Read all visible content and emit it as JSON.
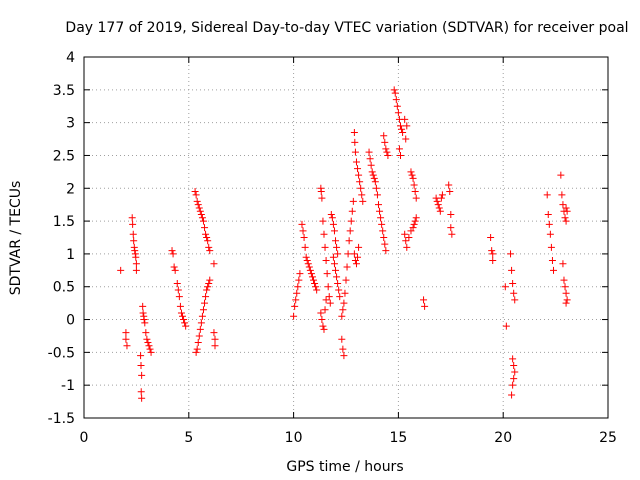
{
  "chart_data": {
    "type": "scatter",
    "title": "Day 177 of 2019, Sidereal Day-to-day VTEC variation (SDTVAR) for receiver poal",
    "xlabel": "GPS time / hours",
    "ylabel": "SDTVAR / TECUs",
    "xlim": [
      0,
      25
    ],
    "ylim": [
      -1.5,
      4
    ],
    "xticks": [
      0,
      5,
      10,
      15,
      20,
      25
    ],
    "yticks": [
      -1.5,
      -1,
      -0.5,
      0,
      0.5,
      1,
      1.5,
      2,
      2.5,
      3,
      3.5,
      4
    ],
    "xtick_labels": [
      "0",
      "5",
      "10",
      "15",
      "20",
      "25"
    ],
    "ytick_labels": [
      "-1.5",
      "-1",
      "-0.5",
      "0",
      "0.5",
      "1",
      "1.5",
      "2",
      "2.5",
      "3",
      "3.5",
      "4"
    ],
    "grid": true,
    "marker": "+",
    "marker_color": "#ff0000",
    "series": [
      {
        "name": "SDTVAR",
        "points": [
          [
            1.75,
            0.75
          ],
          [
            2.0,
            -0.2
          ],
          [
            2.0,
            -0.3
          ],
          [
            2.05,
            -0.4
          ],
          [
            2.3,
            1.55
          ],
          [
            2.32,
            1.45
          ],
          [
            2.35,
            1.3
          ],
          [
            2.37,
            1.2
          ],
          [
            2.4,
            1.1
          ],
          [
            2.42,
            1.05
          ],
          [
            2.45,
            1.0
          ],
          [
            2.47,
            0.95
          ],
          [
            2.5,
            0.85
          ],
          [
            2.5,
            0.75
          ],
          [
            2.7,
            -0.55
          ],
          [
            2.72,
            -0.7
          ],
          [
            2.75,
            -0.85
          ],
          [
            2.73,
            -1.1
          ],
          [
            2.75,
            -1.2
          ],
          [
            2.8,
            0.2
          ],
          [
            2.82,
            0.1
          ],
          [
            2.85,
            0.05
          ],
          [
            2.87,
            0.0
          ],
          [
            2.9,
            -0.05
          ],
          [
            2.95,
            -0.2
          ],
          [
            3.0,
            -0.3
          ],
          [
            3.05,
            -0.35
          ],
          [
            3.1,
            -0.4
          ],
          [
            3.15,
            -0.45
          ],
          [
            3.2,
            -0.5
          ],
          [
            4.2,
            1.05
          ],
          [
            4.25,
            1.0
          ],
          [
            4.3,
            0.8
          ],
          [
            4.35,
            0.75
          ],
          [
            4.45,
            0.55
          ],
          [
            4.5,
            0.45
          ],
          [
            4.55,
            0.35
          ],
          [
            4.6,
            0.2
          ],
          [
            4.65,
            0.1
          ],
          [
            4.7,
            0.05
          ],
          [
            4.75,
            0.0
          ],
          [
            4.8,
            -0.05
          ],
          [
            4.85,
            -0.1
          ],
          [
            5.3,
            1.95
          ],
          [
            5.35,
            1.9
          ],
          [
            5.4,
            1.8
          ],
          [
            5.45,
            1.75
          ],
          [
            5.5,
            1.7
          ],
          [
            5.55,
            1.65
          ],
          [
            5.6,
            1.6
          ],
          [
            5.65,
            1.55
          ],
          [
            5.7,
            1.5
          ],
          [
            5.75,
            1.4
          ],
          [
            5.8,
            1.3
          ],
          [
            5.85,
            1.25
          ],
          [
            5.9,
            1.2
          ],
          [
            5.95,
            1.1
          ],
          [
            6.0,
            1.05
          ],
          [
            5.35,
            -0.5
          ],
          [
            5.4,
            -0.45
          ],
          [
            5.45,
            -0.35
          ],
          [
            5.5,
            -0.25
          ],
          [
            5.55,
            -0.15
          ],
          [
            5.6,
            -0.05
          ],
          [
            5.65,
            0.05
          ],
          [
            5.7,
            0.15
          ],
          [
            5.75,
            0.25
          ],
          [
            5.8,
            0.35
          ],
          [
            5.85,
            0.45
          ],
          [
            5.9,
            0.5
          ],
          [
            5.95,
            0.55
          ],
          [
            6.0,
            0.6
          ],
          [
            6.2,
            -0.2
          ],
          [
            6.25,
            -0.3
          ],
          [
            6.25,
            -0.4
          ],
          [
            6.2,
            0.85
          ],
          [
            10.0,
            0.05
          ],
          [
            10.05,
            0.2
          ],
          [
            10.1,
            0.3
          ],
          [
            10.15,
            0.4
          ],
          [
            10.2,
            0.5
          ],
          [
            10.25,
            0.6
          ],
          [
            10.3,
            0.7
          ],
          [
            10.4,
            1.45
          ],
          [
            10.45,
            1.35
          ],
          [
            10.5,
            1.25
          ],
          [
            10.55,
            1.1
          ],
          [
            10.6,
            0.95
          ],
          [
            10.65,
            0.9
          ],
          [
            10.7,
            0.85
          ],
          [
            10.75,
            0.8
          ],
          [
            10.8,
            0.75
          ],
          [
            10.85,
            0.7
          ],
          [
            10.9,
            0.65
          ],
          [
            10.95,
            0.6
          ],
          [
            11.0,
            0.55
          ],
          [
            11.05,
            0.5
          ],
          [
            11.1,
            0.45
          ],
          [
            11.3,
            2.0
          ],
          [
            11.32,
            1.95
          ],
          [
            11.35,
            1.85
          ],
          [
            11.4,
            1.5
          ],
          [
            11.45,
            1.3
          ],
          [
            11.5,
            1.1
          ],
          [
            11.55,
            0.9
          ],
          [
            11.6,
            0.7
          ],
          [
            11.65,
            0.5
          ],
          [
            11.7,
            0.35
          ],
          [
            11.75,
            0.25
          ],
          [
            11.3,
            0.1
          ],
          [
            11.35,
            0.0
          ],
          [
            11.4,
            -0.1
          ],
          [
            11.45,
            -0.15
          ],
          [
            11.5,
            0.15
          ],
          [
            11.55,
            0.3
          ],
          [
            11.8,
            1.6
          ],
          [
            11.85,
            1.55
          ],
          [
            11.9,
            1.45
          ],
          [
            11.95,
            1.35
          ],
          [
            12.0,
            1.2
          ],
          [
            12.05,
            1.1
          ],
          [
            12.1,
            1.0
          ],
          [
            11.9,
            0.95
          ],
          [
            11.95,
            0.85
          ],
          [
            12.0,
            0.75
          ],
          [
            12.05,
            0.65
          ],
          [
            12.1,
            0.55
          ],
          [
            12.15,
            0.45
          ],
          [
            12.2,
            0.35
          ],
          [
            12.3,
            -0.3
          ],
          [
            12.35,
            -0.45
          ],
          [
            12.4,
            -0.55
          ],
          [
            12.3,
            0.05
          ],
          [
            12.35,
            0.15
          ],
          [
            12.4,
            0.25
          ],
          [
            12.45,
            0.4
          ],
          [
            12.5,
            0.6
          ],
          [
            12.55,
            0.8
          ],
          [
            12.6,
            1.0
          ],
          [
            12.65,
            1.2
          ],
          [
            12.7,
            1.35
          ],
          [
            12.75,
            1.5
          ],
          [
            12.8,
            1.65
          ],
          [
            12.85,
            1.8
          ],
          [
            12.9,
            2.85
          ],
          [
            12.92,
            2.7
          ],
          [
            12.95,
            2.55
          ],
          [
            13.0,
            2.4
          ],
          [
            13.05,
            2.3
          ],
          [
            13.1,
            2.2
          ],
          [
            13.15,
            2.1
          ],
          [
            13.2,
            2.0
          ],
          [
            13.25,
            1.9
          ],
          [
            13.3,
            1.8
          ],
          [
            12.9,
            1.0
          ],
          [
            12.95,
            0.9
          ],
          [
            13.0,
            0.85
          ],
          [
            13.05,
            0.95
          ],
          [
            13.1,
            1.1
          ],
          [
            13.6,
            2.55
          ],
          [
            13.65,
            2.45
          ],
          [
            13.7,
            2.35
          ],
          [
            13.75,
            2.25
          ],
          [
            13.8,
            2.2
          ],
          [
            13.85,
            2.15
          ],
          [
            13.9,
            2.1
          ],
          [
            13.95,
            2.0
          ],
          [
            14.0,
            1.9
          ],
          [
            14.05,
            1.75
          ],
          [
            14.1,
            1.65
          ],
          [
            14.15,
            1.55
          ],
          [
            14.2,
            1.45
          ],
          [
            14.25,
            1.35
          ],
          [
            14.3,
            1.25
          ],
          [
            14.35,
            1.15
          ],
          [
            14.4,
            1.05
          ],
          [
            14.3,
            2.8
          ],
          [
            14.35,
            2.7
          ],
          [
            14.4,
            2.6
          ],
          [
            14.45,
            2.55
          ],
          [
            14.5,
            2.5
          ],
          [
            14.8,
            3.5
          ],
          [
            14.85,
            3.45
          ],
          [
            14.9,
            3.35
          ],
          [
            14.95,
            3.25
          ],
          [
            15.0,
            3.15
          ],
          [
            15.05,
            3.05
          ],
          [
            15.1,
            2.95
          ],
          [
            15.15,
            2.9
          ],
          [
            15.2,
            2.85
          ],
          [
            15.3,
            3.05
          ],
          [
            15.4,
            2.95
          ],
          [
            15.35,
            2.75
          ],
          [
            15.05,
            2.6
          ],
          [
            15.1,
            2.5
          ],
          [
            15.3,
            1.3
          ],
          [
            15.35,
            1.2
          ],
          [
            15.4,
            1.1
          ],
          [
            15.5,
            1.25
          ],
          [
            15.6,
            1.35
          ],
          [
            15.7,
            1.4
          ],
          [
            15.75,
            1.45
          ],
          [
            15.8,
            1.5
          ],
          [
            15.85,
            1.55
          ],
          [
            15.6,
            2.25
          ],
          [
            15.65,
            2.2
          ],
          [
            15.7,
            2.15
          ],
          [
            15.75,
            2.05
          ],
          [
            15.8,
            1.95
          ],
          [
            15.85,
            1.85
          ],
          [
            16.2,
            0.3
          ],
          [
            16.25,
            0.2
          ],
          [
            16.8,
            1.85
          ],
          [
            16.85,
            1.8
          ],
          [
            16.9,
            1.75
          ],
          [
            16.95,
            1.7
          ],
          [
            17.0,
            1.65
          ],
          [
            17.05,
            1.85
          ],
          [
            17.1,
            1.9
          ],
          [
            17.4,
            2.05
          ],
          [
            17.45,
            1.95
          ],
          [
            17.5,
            1.6
          ],
          [
            17.5,
            1.4
          ],
          [
            17.55,
            1.3
          ],
          [
            19.4,
            1.25
          ],
          [
            19.45,
            1.05
          ],
          [
            19.5,
            1.0
          ],
          [
            19.5,
            0.9
          ],
          [
            20.1,
            0.5
          ],
          [
            20.15,
            -0.1
          ],
          [
            20.35,
            1.0
          ],
          [
            20.4,
            0.75
          ],
          [
            20.45,
            0.55
          ],
          [
            20.5,
            0.4
          ],
          [
            20.55,
            0.3
          ],
          [
            20.45,
            -0.6
          ],
          [
            20.5,
            -0.7
          ],
          [
            20.55,
            -0.8
          ],
          [
            20.5,
            -0.9
          ],
          [
            20.45,
            -1.0
          ],
          [
            20.4,
            -1.15
          ],
          [
            22.1,
            1.9
          ],
          [
            22.15,
            1.6
          ],
          [
            22.2,
            1.45
          ],
          [
            22.25,
            1.3
          ],
          [
            22.3,
            1.1
          ],
          [
            22.35,
            0.9
          ],
          [
            22.4,
            0.75
          ],
          [
            22.75,
            2.2
          ],
          [
            22.8,
            1.9
          ],
          [
            22.85,
            1.75
          ],
          [
            22.9,
            1.65
          ],
          [
            22.95,
            1.55
          ],
          [
            23.0,
            1.5
          ],
          [
            23.0,
            1.7
          ],
          [
            23.05,
            1.65
          ],
          [
            22.85,
            0.85
          ],
          [
            22.9,
            0.6
          ],
          [
            22.95,
            0.5
          ],
          [
            23.0,
            0.4
          ],
          [
            23.05,
            0.3
          ],
          [
            23.0,
            0.25
          ]
        ]
      }
    ]
  }
}
